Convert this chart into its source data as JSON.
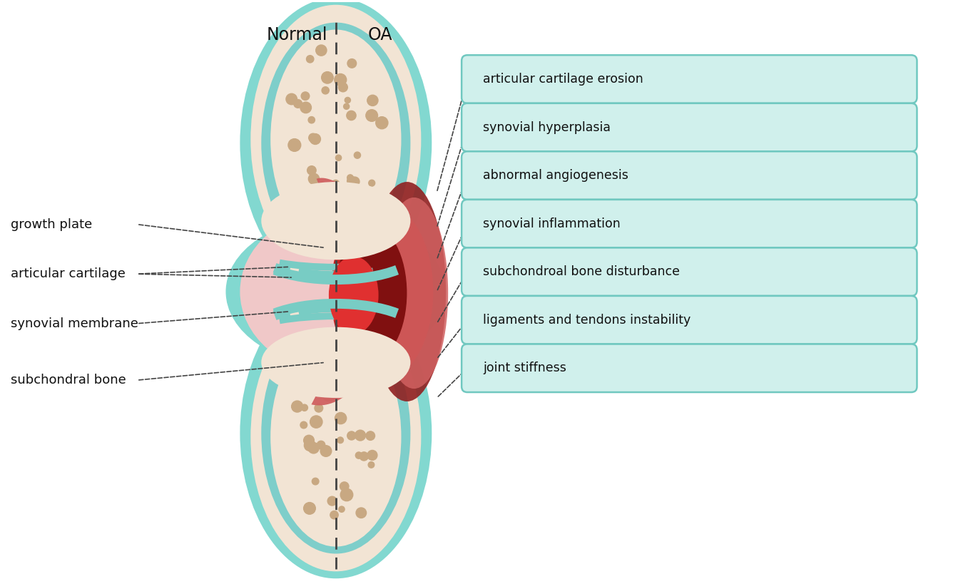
{
  "title_normal": "Normal",
  "title_oa": "OA",
  "right_labels": [
    "articular cartilage erosion",
    "synovial hyperplasia",
    "abnormal angiogenesis",
    "synovial inflammation",
    "subchondroal bone disturbance",
    "ligaments and tendons instability",
    "joint stiffness"
  ],
  "colors": {
    "background": "#ffffff",
    "teal_outer": "#82d8d0",
    "teal_inner": "#7ececa",
    "bone_fill": "#f2e4d4",
    "bone_spots": "#c8a882",
    "pink_synovial": "#f0c8c8",
    "pink_light": "#f5d5d5",
    "cartilage_teal": "#78ccc4",
    "brown_ring": "#c8a882",
    "oa_red_bright": "#e03030",
    "oa_red_mid": "#c02020",
    "oa_red_dark": "#801010",
    "oa_pink": "#d06060",
    "oa_maroon": "#902020",
    "label_box_fill": "#d0f0ec",
    "label_box_edge": "#70c8c0",
    "dashed_color": "#444444",
    "text_color": "#111111"
  },
  "figsize": [
    13.5,
    8.19
  ],
  "dpi": 100
}
